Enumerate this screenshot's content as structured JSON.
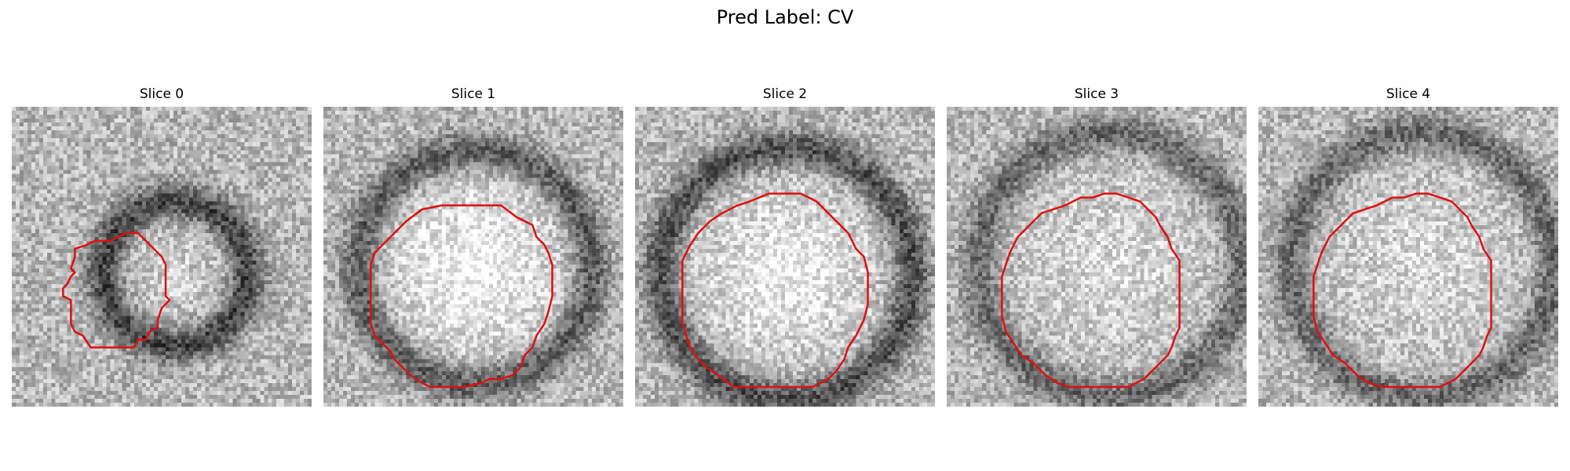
{
  "figure": {
    "title": "Pred Label: CV",
    "contour_color": "#e01010"
  },
  "panels": [
    {
      "title": "Slice 0",
      "seed": 11,
      "center": [
        0.54,
        0.55
      ],
      "rim_radius": 0.24,
      "rim_strength": 0.45,
      "inner_bright": 0.1,
      "contour": [
        [
          16,
          36
        ],
        [
          19,
          35
        ],
        [
          21,
          34
        ],
        [
          25,
          34
        ],
        [
          29,
          32
        ],
        [
          32,
          32
        ],
        [
          35,
          35
        ],
        [
          38,
          38
        ],
        [
          39,
          40
        ],
        [
          39,
          44
        ],
        [
          39,
          48
        ],
        [
          40,
          49
        ],
        [
          38,
          51
        ],
        [
          37,
          54
        ],
        [
          37,
          56
        ],
        [
          35,
          57
        ],
        [
          34,
          59
        ],
        [
          32,
          59
        ],
        [
          31,
          61
        ],
        [
          26,
          61
        ],
        [
          23,
          61
        ],
        [
          20,
          61
        ],
        [
          18,
          58
        ],
        [
          16,
          57
        ],
        [
          15,
          55
        ],
        [
          15,
          53
        ],
        [
          15,
          49
        ],
        [
          13,
          48
        ],
        [
          13,
          46
        ],
        [
          14,
          45
        ],
        [
          15,
          43
        ],
        [
          16,
          42
        ],
        [
          15,
          41
        ],
        [
          16,
          38
        ]
      ]
    },
    {
      "title": "Slice 1",
      "seed": 22,
      "center": [
        0.5,
        0.53
      ],
      "rim_radius": 0.39,
      "rim_strength": 0.35,
      "inner_bright": 0.3,
      "contour": [
        [
          13,
          37
        ],
        [
          15,
          35
        ],
        [
          17,
          33
        ],
        [
          21,
          29
        ],
        [
          25,
          26
        ],
        [
          30,
          25
        ],
        [
          37,
          25
        ],
        [
          45,
          25
        ],
        [
          49,
          28
        ],
        [
          51,
          29
        ],
        [
          53,
          30
        ],
        [
          54,
          33
        ],
        [
          56,
          35
        ],
        [
          57,
          37
        ],
        [
          58,
          40
        ],
        [
          58,
          44
        ],
        [
          58,
          48
        ],
        [
          57,
          52
        ],
        [
          56,
          55
        ],
        [
          54,
          58
        ],
        [
          53,
          61
        ],
        [
          51,
          63
        ],
        [
          50,
          66
        ],
        [
          48,
          68
        ],
        [
          45,
          69
        ],
        [
          42,
          69
        ],
        [
          40,
          70
        ],
        [
          36,
          71
        ],
        [
          31,
          71
        ],
        [
          27,
          71
        ],
        [
          25,
          70
        ],
        [
          22,
          68
        ],
        [
          20,
          66
        ],
        [
          18,
          64
        ],
        [
          17,
          62
        ],
        [
          15,
          60
        ],
        [
          13,
          58
        ],
        [
          12,
          55
        ],
        [
          12,
          51
        ],
        [
          12,
          47
        ],
        [
          12,
          43
        ],
        [
          12,
          40
        ]
      ]
    },
    {
      "title": "Slice 2",
      "seed": 33,
      "center": [
        0.5,
        0.55
      ],
      "rim_radius": 0.42,
      "rim_strength": 0.4,
      "inner_bright": 0.25,
      "contour": [
        [
          12,
          39
        ],
        [
          14,
          35
        ],
        [
          16,
          32
        ],
        [
          19,
          29
        ],
        [
          22,
          27
        ],
        [
          26,
          25
        ],
        [
          29,
          24
        ],
        [
          34,
          22
        ],
        [
          38,
          22
        ],
        [
          42,
          22
        ],
        [
          46,
          24
        ],
        [
          49,
          27
        ],
        [
          51,
          29
        ],
        [
          54,
          32
        ],
        [
          56,
          36
        ],
        [
          58,
          38
        ],
        [
          59,
          42
        ],
        [
          59,
          46
        ],
        [
          59,
          50
        ],
        [
          58,
          54
        ],
        [
          56,
          58
        ],
        [
          54,
          61
        ],
        [
          53,
          64
        ],
        [
          51,
          67
        ],
        [
          49,
          69
        ],
        [
          47,
          70
        ],
        [
          45,
          71
        ],
        [
          40,
          71
        ],
        [
          34,
          71
        ],
        [
          28,
          71
        ],
        [
          25,
          71
        ],
        [
          21,
          68
        ],
        [
          18,
          66
        ],
        [
          16,
          64
        ],
        [
          14,
          61
        ],
        [
          13,
          58
        ],
        [
          12,
          55
        ],
        [
          12,
          50
        ],
        [
          12,
          45
        ],
        [
          12,
          41
        ]
      ]
    },
    {
      "title": "Slice 3",
      "seed": 44,
      "center": [
        0.54,
        0.52
      ],
      "rim_radius": 0.44,
      "rim_strength": 0.3,
      "inner_bright": 0.15,
      "contour": [
        [
          14,
          43
        ],
        [
          15,
          40
        ],
        [
          16,
          37
        ],
        [
          18,
          33
        ],
        [
          20,
          31
        ],
        [
          22,
          29
        ],
        [
          24,
          27
        ],
        [
          27,
          26
        ],
        [
          30,
          25
        ],
        [
          34,
          23
        ],
        [
          37,
          23
        ],
        [
          40,
          22
        ],
        [
          43,
          22
        ],
        [
          46,
          23
        ],
        [
          49,
          24
        ],
        [
          51,
          26
        ],
        [
          53,
          28
        ],
        [
          54,
          30
        ],
        [
          56,
          33
        ],
        [
          57,
          36
        ],
        [
          59,
          39
        ],
        [
          59,
          43
        ],
        [
          59,
          47
        ],
        [
          59,
          52
        ],
        [
          59,
          56
        ],
        [
          58,
          58
        ],
        [
          57,
          61
        ],
        [
          56,
          63
        ],
        [
          54,
          65
        ],
        [
          52,
          67
        ],
        [
          50,
          69
        ],
        [
          48,
          70
        ],
        [
          46,
          71
        ],
        [
          41,
          71
        ],
        [
          35,
          71
        ],
        [
          31,
          71
        ],
        [
          28,
          70
        ],
        [
          25,
          68
        ],
        [
          22,
          65
        ],
        [
          19,
          63
        ],
        [
          17,
          60
        ],
        [
          15,
          57
        ],
        [
          14,
          53
        ],
        [
          14,
          49
        ],
        [
          14,
          45
        ]
      ]
    },
    {
      "title": "Slice 4",
      "seed": 55,
      "center": [
        0.54,
        0.52
      ],
      "rim_radius": 0.44,
      "rim_strength": 0.3,
      "inner_bright": 0.15,
      "contour": [
        [
          14,
          43
        ],
        [
          15,
          40
        ],
        [
          16,
          37
        ],
        [
          18,
          33
        ],
        [
          20,
          31
        ],
        [
          22,
          29
        ],
        [
          24,
          27
        ],
        [
          27,
          26
        ],
        [
          30,
          25
        ],
        [
          34,
          23
        ],
        [
          37,
          23
        ],
        [
          40,
          22
        ],
        [
          43,
          22
        ],
        [
          46,
          23
        ],
        [
          49,
          24
        ],
        [
          51,
          26
        ],
        [
          53,
          28
        ],
        [
          54,
          30
        ],
        [
          56,
          33
        ],
        [
          57,
          36
        ],
        [
          59,
          39
        ],
        [
          59,
          43
        ],
        [
          59,
          47
        ],
        [
          59,
          52
        ],
        [
          59,
          56
        ],
        [
          58,
          58
        ],
        [
          57,
          61
        ],
        [
          56,
          63
        ],
        [
          54,
          65
        ],
        [
          52,
          67
        ],
        [
          50,
          69
        ],
        [
          48,
          70
        ],
        [
          46,
          71
        ],
        [
          41,
          71
        ],
        [
          35,
          71
        ],
        [
          31,
          71
        ],
        [
          28,
          70
        ],
        [
          25,
          68
        ],
        [
          22,
          65
        ],
        [
          19,
          63
        ],
        [
          17,
          60
        ],
        [
          15,
          57
        ],
        [
          14,
          53
        ],
        [
          14,
          49
        ],
        [
          14,
          45
        ]
      ]
    }
  ]
}
